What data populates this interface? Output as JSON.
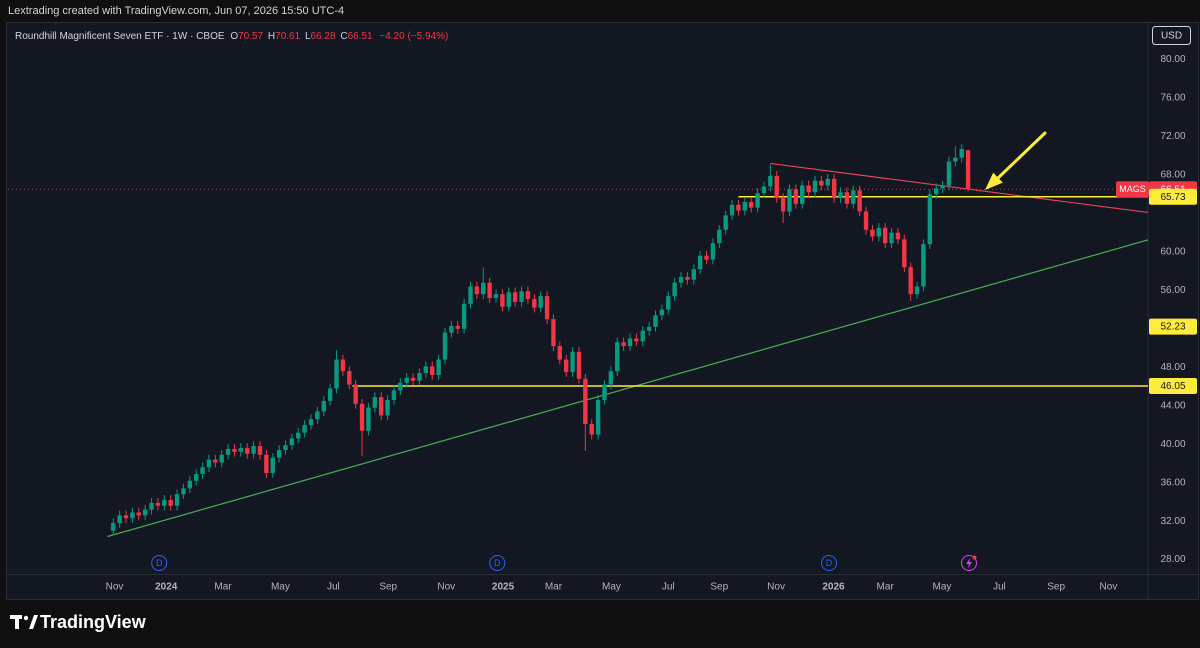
{
  "header": {
    "attribution": "Lextrading created with TradingView.com, Jun 07, 2026 15:50 UTC-4"
  },
  "footer": {
    "brand": "TradingView"
  },
  "chart_data": {
    "type": "candlestick",
    "title": "Roundhill Magnificent Seven ETF · 1W · CBOE",
    "ohlc_labels": [
      "O",
      "H",
      "L",
      "C"
    ],
    "change": "−4.20 (−5.94%)",
    "currency": "USD",
    "up_color": "#089981",
    "down_color": "#f23645",
    "open": [
      31.0,
      31.8,
      32.6,
      32.3,
      32.9,
      32.6,
      33.2,
      33.9,
      33.6,
      34.2,
      33.6,
      34.8,
      35.4,
      36.2,
      36.9,
      37.6,
      38.4,
      38.1,
      38.9,
      39.5,
      39.2,
      39.6,
      39.0,
      39.8,
      38.9,
      37.0,
      38.6,
      39.4,
      39.9,
      40.6,
      41.2,
      42.0,
      42.6,
      43.4,
      44.5,
      45.8,
      48.8,
      47.6,
      46.2,
      44.2,
      41.4,
      43.8,
      44.9,
      43.0,
      44.6,
      45.6,
      46.4,
      46.9,
      46.6,
      47.4,
      48.1,
      47.2,
      48.8,
      51.6,
      52.3,
      52.0,
      54.6,
      56.4,
      55.6,
      56.8,
      55.2,
      55.6,
      54.3,
      55.8,
      54.8,
      55.9,
      55.1,
      54.2,
      55.4,
      53.0,
      50.2,
      48.8,
      47.5,
      49.6,
      46.8,
      42.1,
      41.0,
      44.6,
      46.2,
      47.6,
      50.6,
      50.2,
      51.0,
      50.7,
      51.8,
      52.2,
      53.4,
      54.0,
      55.4,
      56.8,
      57.4,
      57.1,
      58.2,
      59.6,
      59.2,
      60.9,
      62.3,
      63.8,
      64.9,
      64.3,
      65.2,
      64.6,
      66.1,
      66.8,
      67.9,
      65.6,
      64.2,
      66.5,
      65.0,
      66.9,
      66.2,
      67.4,
      66.9,
      67.6,
      65.6,
      66.2,
      65.0,
      66.4,
      64.2,
      62.3,
      61.6,
      62.5,
      60.9,
      62.0,
      61.3,
      58.4,
      55.6,
      56.4,
      60.8,
      66.0,
      66.6,
      66.9,
      69.4,
      69.8,
      70.57
    ],
    "high": [
      32.3,
      33.1,
      33.1,
      33.4,
      33.4,
      33.7,
      34.4,
      34.4,
      34.7,
      34.7,
      35.3,
      35.9,
      36.7,
      37.4,
      38.1,
      38.9,
      38.9,
      39.4,
      40.0,
      40.0,
      40.1,
      40.1,
      40.3,
      40.3,
      39.4,
      39.1,
      39.9,
      40.4,
      41.1,
      41.7,
      42.5,
      43.1,
      43.9,
      45.0,
      46.3,
      49.8,
      49.3,
      48.1,
      46.7,
      44.7,
      44.3,
      45.4,
      45.4,
      45.1,
      46.1,
      46.9,
      47.4,
      47.4,
      47.9,
      48.6,
      48.6,
      49.3,
      52.1,
      52.8,
      52.8,
      55.1,
      56.9,
      56.9,
      58.4,
      57.3,
      56.1,
      56.1,
      56.3,
      56.3,
      56.4,
      56.4,
      55.6,
      55.9,
      55.9,
      53.5,
      50.7,
      49.3,
      50.1,
      50.1,
      47.3,
      42.6,
      45.1,
      46.7,
      48.1,
      51.1,
      51.1,
      51.5,
      51.5,
      52.3,
      52.7,
      53.9,
      54.5,
      55.9,
      57.3,
      57.9,
      57.9,
      58.7,
      60.1,
      60.1,
      61.4,
      62.8,
      64.3,
      65.4,
      65.4,
      65.7,
      65.7,
      66.6,
      67.3,
      69.1,
      68.4,
      66.1,
      67.0,
      67.0,
      67.4,
      67.4,
      67.9,
      67.9,
      68.1,
      68.1,
      66.7,
      66.7,
      66.9,
      66.9,
      64.7,
      62.8,
      63.0,
      63.0,
      62.5,
      62.5,
      61.8,
      58.9,
      56.9,
      61.3,
      66.5,
      67.1,
      67.4,
      69.9,
      71.0,
      71.2,
      70.61
    ],
    "low": [
      30.5,
      31.3,
      31.8,
      31.8,
      32.1,
      32.1,
      32.7,
      33.1,
      33.1,
      33.1,
      33.1,
      34.3,
      34.9,
      35.7,
      36.4,
      37.1,
      37.6,
      37.6,
      38.4,
      38.7,
      38.7,
      38.5,
      38.5,
      38.4,
      36.5,
      36.5,
      38.1,
      38.9,
      39.4,
      40.1,
      40.7,
      41.5,
      42.1,
      42.9,
      44.0,
      45.3,
      47.1,
      45.7,
      43.7,
      38.8,
      40.9,
      43.3,
      42.5,
      42.5,
      44.1,
      45.1,
      45.9,
      46.1,
      46.1,
      46.9,
      46.7,
      46.7,
      48.3,
      51.1,
      51.5,
      51.5,
      54.1,
      55.1,
      55.1,
      54.7,
      54.7,
      53.8,
      53.8,
      54.3,
      54.3,
      54.6,
      53.7,
      53.7,
      52.5,
      49.7,
      48.3,
      47.0,
      47.0,
      46.3,
      39.3,
      40.5,
      40.5,
      44.1,
      45.7,
      47.1,
      49.7,
      49.7,
      50.2,
      50.2,
      51.3,
      51.7,
      52.9,
      53.5,
      54.9,
      56.3,
      56.6,
      56.6,
      57.7,
      58.7,
      58.7,
      60.4,
      61.8,
      63.3,
      63.8,
      63.8,
      64.1,
      64.1,
      65.6,
      66.3,
      65.1,
      63.0,
      63.7,
      64.5,
      64.5,
      65.7,
      65.7,
      66.4,
      66.4,
      65.1,
      65.1,
      64.5,
      64.5,
      63.7,
      61.8,
      61.1,
      61.1,
      60.4,
      60.4,
      60.8,
      57.9,
      54.9,
      55.1,
      55.9,
      60.3,
      65.5,
      66.1,
      66.4,
      68.9,
      69.3,
      66.28
    ],
    "close": [
      31.8,
      32.6,
      32.3,
      32.9,
      32.6,
      33.2,
      33.9,
      33.6,
      34.2,
      33.6,
      34.8,
      35.4,
      36.2,
      36.9,
      37.6,
      38.4,
      38.1,
      38.9,
      39.5,
      39.2,
      39.6,
      39.0,
      39.8,
      38.9,
      37.0,
      38.6,
      39.4,
      39.9,
      40.6,
      41.2,
      42.0,
      42.6,
      43.4,
      44.5,
      45.8,
      48.8,
      47.6,
      46.2,
      44.2,
      41.4,
      43.8,
      44.9,
      43.0,
      44.6,
      45.6,
      46.4,
      46.9,
      46.6,
      47.4,
      48.1,
      47.2,
      48.8,
      51.6,
      52.3,
      52.0,
      54.6,
      56.4,
      55.6,
      56.8,
      55.2,
      55.6,
      54.3,
      55.8,
      54.8,
      55.9,
      55.1,
      54.2,
      55.4,
      53.0,
      50.2,
      48.8,
      47.5,
      49.6,
      46.8,
      42.1,
      41.0,
      44.6,
      46.2,
      47.6,
      50.6,
      50.2,
      51.0,
      50.7,
      51.8,
      52.2,
      53.4,
      54.0,
      55.4,
      56.8,
      57.4,
      57.1,
      58.2,
      59.6,
      59.2,
      60.9,
      62.3,
      63.8,
      64.9,
      64.3,
      65.2,
      64.6,
      66.1,
      66.8,
      67.9,
      65.6,
      64.2,
      66.5,
      65.0,
      66.9,
      66.2,
      67.4,
      66.9,
      67.6,
      65.6,
      66.2,
      65.0,
      66.4,
      64.2,
      62.3,
      61.6,
      62.5,
      60.9,
      62.0,
      61.3,
      58.4,
      55.6,
      56.4,
      60.8,
      66.0,
      66.6,
      66.9,
      69.4,
      69.8,
      70.71,
      66.51
    ],
    "xlim": [
      -16.5,
      162.2
    ],
    "xticks": [
      {
        "value": 0.2,
        "label": "Nov"
      },
      {
        "value": 8.3,
        "label": "2024"
      },
      {
        "value": 17.2,
        "label": "Mar"
      },
      {
        "value": 26.2,
        "label": "May"
      },
      {
        "value": 34.5,
        "label": "Jul"
      },
      {
        "value": 43.1,
        "label": "Sep"
      },
      {
        "value": 52.2,
        "label": "Nov"
      },
      {
        "value": 61.1,
        "label": "2025"
      },
      {
        "value": 69.0,
        "label": "Mar"
      },
      {
        "value": 78.1,
        "label": "May"
      },
      {
        "value": 87.0,
        "label": "Jul"
      },
      {
        "value": 95.0,
        "label": "Sep"
      },
      {
        "value": 103.9,
        "label": "Nov"
      },
      {
        "value": 112.9,
        "label": "2026"
      },
      {
        "value": 121.0,
        "label": "Mar"
      },
      {
        "value": 129.9,
        "label": "May"
      },
      {
        "value": 138.9,
        "label": "Jul"
      },
      {
        "value": 147.8,
        "label": "Sep"
      },
      {
        "value": 156.0,
        "label": "Nov"
      }
    ],
    "ylim": [
      26.5,
      83.7
    ],
    "yticks": [
      {
        "value": 80,
        "label": "80.00"
      },
      {
        "value": 76,
        "label": "76.00"
      },
      {
        "value": 72,
        "label": "72.00"
      },
      {
        "value": 68,
        "label": "68.00"
      },
      {
        "value": 60,
        "label": "60.00"
      },
      {
        "value": 56,
        "label": "56.00"
      },
      {
        "value": 48,
        "label": "48.00"
      },
      {
        "value": 44,
        "label": "44.00"
      },
      {
        "value": 40,
        "label": "40.00"
      },
      {
        "value": 36,
        "label": "36.00"
      },
      {
        "value": 32,
        "label": "32.00"
      },
      {
        "value": 28,
        "label": "28.00"
      }
    ],
    "price_labels": [
      {
        "symbol": "MAGS",
        "value": 66.51,
        "color": "#f23645",
        "text_color": "#ffffff",
        "dotted": true
      },
      {
        "value": 65.73,
        "color": "#ffeb3b",
        "text_color": "#131722",
        "line_from": 98.0
      },
      {
        "value": 52.23,
        "color": "#ffeb3b",
        "text_color": "#131722"
      },
      {
        "value": 46.05,
        "color": "#ffeb3b",
        "text_color": "#131722",
        "line_from": 37.5
      }
    ],
    "trend_lines": [
      {
        "color": "#4caf50",
        "x": [
          -0.9,
          162.2
        ],
        "y": [
          30.4,
          61.25
        ]
      },
      {
        "color": "#e8455a",
        "x": [
          103.0,
          162.2
        ],
        "y": [
          69.2,
          64.1
        ]
      }
    ],
    "events": [
      {
        "label": "D",
        "x": 7.2
      },
      {
        "label": "D",
        "x": 60.2
      },
      {
        "label": "D",
        "x": 112.2
      }
    ],
    "grid": false
  }
}
